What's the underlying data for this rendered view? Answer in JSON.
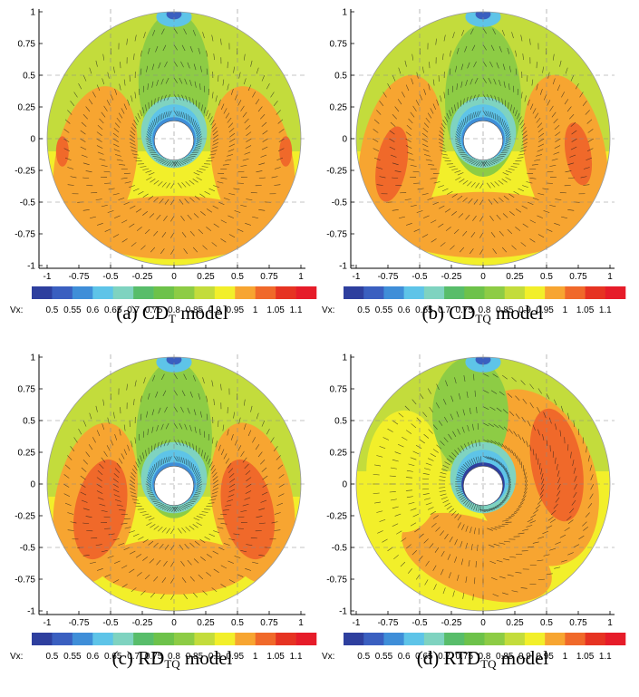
{
  "legend": {
    "label": "Vx:",
    "levels": [
      "0.5",
      "0.55",
      "0.6",
      "0.65",
      "0.7",
      "0.75",
      "0.8",
      "0.85",
      "0.9",
      "0.95",
      "1",
      "1.05",
      "1.1"
    ],
    "colors": [
      "#2e3f9e",
      "#3a5fc0",
      "#3f8ed8",
      "#5ec4e8",
      "#7fd3c0",
      "#58bd6a",
      "#6dc24a",
      "#8dcc45",
      "#c3dc3c",
      "#f2ef2a",
      "#f7a531",
      "#f0692a",
      "#e63322",
      "#e61c29"
    ]
  },
  "axes": {
    "x_ticks": [
      "-1",
      "-0.75",
      "-0.5",
      "-0.25",
      "0",
      "0.25",
      "0.5",
      "0.75",
      "1"
    ],
    "y_ticks": [
      "1",
      "0.75",
      "0.5",
      "0.25",
      "0",
      "-0.25",
      "-0.5",
      "-0.75",
      "-1"
    ],
    "xlim": [
      -1,
      1
    ],
    "ylim": [
      -1,
      1
    ],
    "grid": true
  },
  "chart_data": [
    {
      "type": "heatmap",
      "caption_main": "(a) CD",
      "caption_sub": "T",
      "caption_suffix": " model",
      "variable": "Vx",
      "range": [
        0.5,
        1.1
      ]
    },
    {
      "type": "heatmap",
      "caption_main": "(b) CD",
      "caption_sub": "TQ",
      "caption_suffix": " model",
      "variable": "Vx",
      "range": [
        0.5,
        1.1
      ]
    },
    {
      "type": "heatmap",
      "caption_main": "(c) RD",
      "caption_sub": "TQ",
      "caption_suffix": " model",
      "variable": "Vx",
      "range": [
        0.5,
        1.1
      ]
    },
    {
      "type": "heatmap",
      "caption_main": "(d) RTD",
      "caption_sub": "TQ",
      "caption_suffix": " model",
      "variable": "Vx",
      "range": [
        0.5,
        1.1
      ]
    }
  ]
}
